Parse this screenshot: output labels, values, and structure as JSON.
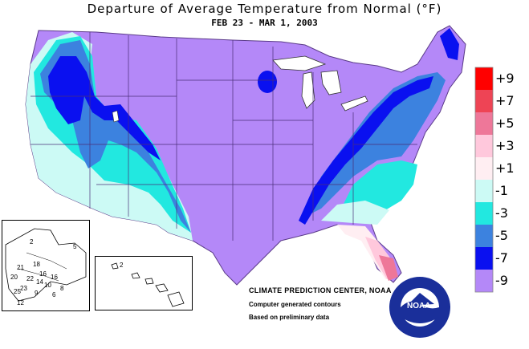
{
  "header": {
    "title": "Departure of Average Temperature from Normal (°F)",
    "subtitle": "FEB 23 - MAR  1, 2003"
  },
  "legend": {
    "items": [
      {
        "label": "+9",
        "color": "#ff0000"
      },
      {
        "label": "+7",
        "color": "#ee4455"
      },
      {
        "label": "+5",
        "color": "#ee7799"
      },
      {
        "label": "+3",
        "color": "#ffc8dc"
      },
      {
        "label": "+1",
        "color": "#ffeef2"
      },
      {
        "label": "-1",
        "color": "#ccfaf5"
      },
      {
        "label": "-3",
        "color": "#22e8e0"
      },
      {
        "label": "-5",
        "color": "#3c82df"
      },
      {
        "label": "-7",
        "color": "#0a10f0"
      },
      {
        "label": "-9",
        "color": "#b488f8"
      }
    ]
  },
  "credits": {
    "center": "CLIMATE PREDICTION CENTER, NOAA",
    "note1": "Computer generated contours",
    "note2": "Based on preliminary data"
  },
  "alaska_inset": {
    "contours": [
      "2",
      "5",
      "18",
      "21",
      "16",
      "16",
      "20",
      "22",
      "14",
      "10",
      "8",
      "23",
      "25",
      "9",
      "6",
      "12"
    ]
  },
  "hawaii_inset": {
    "contours": [
      "2"
    ]
  },
  "logo": {
    "text": "NOAA",
    "primary_color": "#1a2f9a",
    "ring_color": "#ffffff"
  }
}
